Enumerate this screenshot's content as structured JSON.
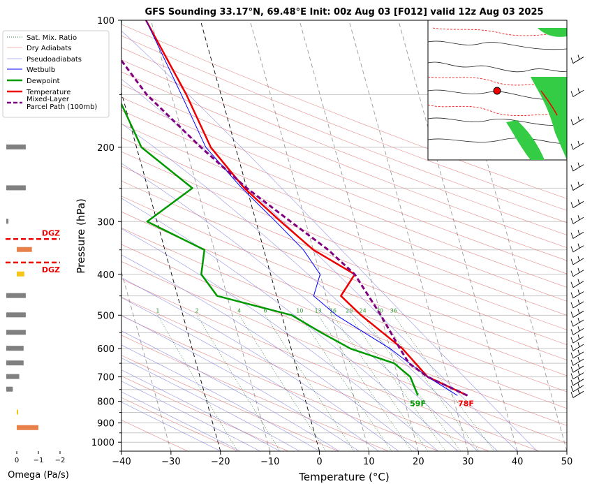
{
  "chart_data": {
    "type": "skew-t",
    "title": "GFS Sounding 33.17°N, 69.48°E Init: 00z Aug 03 [F012] valid 12z Aug 03 2025",
    "xlabel": "Temperature (°C)",
    "ylabel": "Pressure (hPa)",
    "xlim": [
      -40,
      50
    ],
    "ylim": [
      1050,
      100
    ],
    "log_y": true,
    "x_ticks": [
      "−40",
      "−30",
      "−20",
      "−10",
      "0",
      "10",
      "20",
      "30",
      "40",
      "50"
    ],
    "y_ticks": [
      {
        "p": 100,
        "label": "100"
      },
      {
        "p": 200,
        "label": "200"
      },
      {
        "p": 300,
        "label": "300"
      },
      {
        "p": 400,
        "label": "400"
      },
      {
        "p": 500,
        "label": "500"
      },
      {
        "p": 600,
        "label": "600"
      },
      {
        "p": 700,
        "label": "700"
      },
      {
        "p": 800,
        "label": "800"
      },
      {
        "p": 900,
        "label": "900"
      },
      {
        "p": 1000,
        "label": "1000"
      }
    ],
    "legend": {
      "placement": "top-left",
      "entries": [
        {
          "label": "Sat. Mix. Ratio",
          "color": "#2e7d32",
          "style": "dotted"
        },
        {
          "label": "Dry Adiabats",
          "color": "#e07070",
          "style": "solid-thin"
        },
        {
          "label": "Pseudoadiabats",
          "color": "#7070e0",
          "style": "solid-thin"
        },
        {
          "label": "Wetbulb",
          "color": "#0000ff",
          "style": "solid"
        },
        {
          "label": "Dewpoint",
          "color": "#009900",
          "style": "solid-thick"
        },
        {
          "label": "Temperature",
          "color": "#ee0000",
          "style": "solid-thick"
        },
        {
          "label": "Mixed-Layer Parcel Path (100mb)",
          "color": "#800080",
          "style": "dashed"
        }
      ]
    },
    "series": [
      {
        "name": "Temperature",
        "color": "#ee0000",
        "points": [
          [
            775,
            33
          ],
          [
            700,
            26
          ],
          [
            600,
            22.5
          ],
          [
            500,
            16
          ],
          [
            450,
            13
          ],
          [
            400,
            17
          ],
          [
            350,
            10
          ],
          [
            300,
            5
          ],
          [
            250,
            -0.5
          ],
          [
            200,
            -5
          ],
          [
            150,
            -7
          ],
          [
            100,
            -11
          ]
        ]
      },
      {
        "name": "Dewpoint",
        "color": "#009900",
        "points": [
          [
            775,
            23
          ],
          [
            700,
            22.5
          ],
          [
            650,
            20
          ],
          [
            600,
            12
          ],
          [
            550,
            7
          ],
          [
            500,
            2
          ],
          [
            450,
            -12
          ],
          [
            400,
            -14
          ],
          [
            350,
            -12
          ],
          [
            300,
            -22
          ],
          [
            250,
            -11
          ],
          [
            200,
            -19
          ],
          [
            150,
            -21
          ],
          [
            100,
            -16
          ]
        ]
      },
      {
        "name": "Wetbulb",
        "color": "#0000ff",
        "points": [
          [
            775,
            31
          ],
          [
            700,
            26
          ],
          [
            600,
            20
          ],
          [
            500,
            11
          ],
          [
            450,
            7.5
          ],
          [
            400,
            10
          ],
          [
            350,
            8
          ],
          [
            300,
            4
          ],
          [
            250,
            -1
          ],
          [
            200,
            -6
          ],
          [
            150,
            -8
          ],
          [
            100,
            -11
          ]
        ]
      },
      {
        "name": "Mixed-Layer Parcel Path (100mb)",
        "color": "#800080",
        "points": [
          [
            775,
            33
          ],
          [
            700,
            26
          ],
          [
            650,
            23
          ],
          [
            600,
            22
          ],
          [
            500,
            20
          ],
          [
            400,
            17
          ],
          [
            350,
            13
          ],
          [
            300,
            7
          ],
          [
            250,
            0
          ],
          [
            200,
            -7
          ],
          [
            150,
            -15
          ],
          [
            100,
            -22
          ]
        ]
      }
    ],
    "surface_labels": [
      {
        "text": "59F",
        "color": "#009900"
      },
      {
        "text": "78F",
        "color": "#ee0000"
      }
    ],
    "mixing_ratio_labels": [
      "1",
      "2",
      "4",
      "6",
      "10",
      "13",
      "16",
      "20",
      "24",
      "30",
      "36"
    ],
    "mixing_ratio_values": [
      1,
      2,
      4,
      6,
      10,
      13,
      16,
      20,
      24,
      30,
      36
    ]
  },
  "omega": {
    "xlabel": "Omega (Pa/s)",
    "ticks": [
      "0",
      "−1",
      "−2"
    ],
    "dgz_label": "DGZ",
    "bars": [
      {
        "p": 925,
        "value": 1.0,
        "color": "#e8804a"
      },
      {
        "p": 850,
        "value": 0.05,
        "color": "#f5c518"
      },
      {
        "p": 750,
        "value": 0.3,
        "color": "#808080"
      },
      {
        "p": 700,
        "value": 0.6,
        "color": "#808080"
      },
      {
        "p": 650,
        "value": 0.8,
        "color": "#808080"
      },
      {
        "p": 600,
        "value": 0.8,
        "color": "#808080"
      },
      {
        "p": 550,
        "value": 0.9,
        "color": "#808080"
      },
      {
        "p": 500,
        "value": 0.9,
        "color": "#808080"
      },
      {
        "p": 450,
        "value": 0.9,
        "color": "#808080"
      },
      {
        "p": 400,
        "value": 0.35,
        "color": "#f5c518"
      },
      {
        "p": 350,
        "value": 0.7,
        "color": "#e8804a"
      },
      {
        "p": 300,
        "value": 0.1,
        "color": "#808080"
      },
      {
        "p": 250,
        "value": 0.9,
        "color": "#808080"
      },
      {
        "p": 200,
        "value": 0.9,
        "color": "#808080"
      },
      {
        "p": 150,
        "value": 0.15,
        "color": "#f5c518"
      }
    ],
    "dgz_levels": [
      375,
      330
    ]
  },
  "inset_map": {
    "point_color": "#ee0000"
  }
}
